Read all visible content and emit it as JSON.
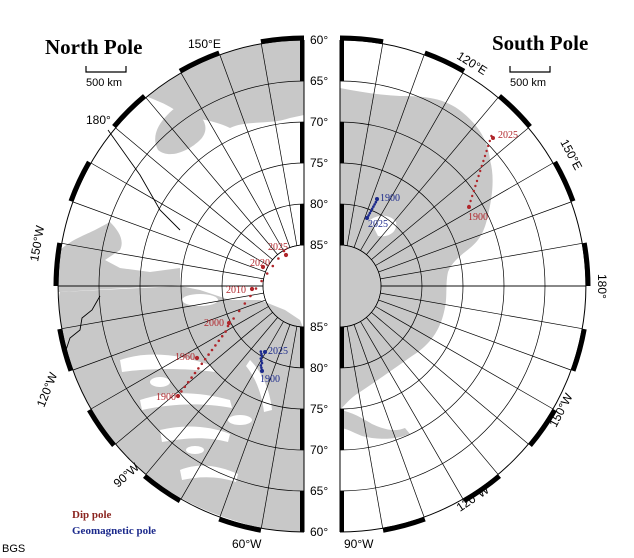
{
  "north": {
    "title": "North Pole",
    "scale_label": "500 km",
    "lon_labels": [
      "150°E",
      "180°",
      "150°W",
      "120°W",
      "90°W",
      "60°W"
    ],
    "years_dip": [
      "2025",
      "2020",
      "2010",
      "2000",
      "1960",
      "1900"
    ],
    "years_geo": [
      "2025",
      "1900"
    ]
  },
  "south": {
    "title": "South Pole",
    "scale_label": "500 km",
    "lon_labels": [
      "120°E",
      "150°E",
      "180°",
      "150°W",
      "120°W",
      "90°W"
    ],
    "years_dip": [
      "2025",
      "1900"
    ],
    "years_geo": [
      "1900",
      "2025"
    ]
  },
  "lat_labels_top": [
    "60°",
    "65°",
    "70°",
    "75°",
    "80°",
    "85°"
  ],
  "lat_labels_bottom": [
    "85°",
    "80°",
    "75°",
    "70°",
    "65°",
    "60°"
  ],
  "legend": {
    "dip": "Dip pole",
    "geomagnetic": "Geomagnetic pole"
  },
  "credit": "BGS",
  "colors": {
    "land": "#c8c8c8",
    "dip": "#b0262b",
    "geomagnetic": "#1c2a8c"
  }
}
